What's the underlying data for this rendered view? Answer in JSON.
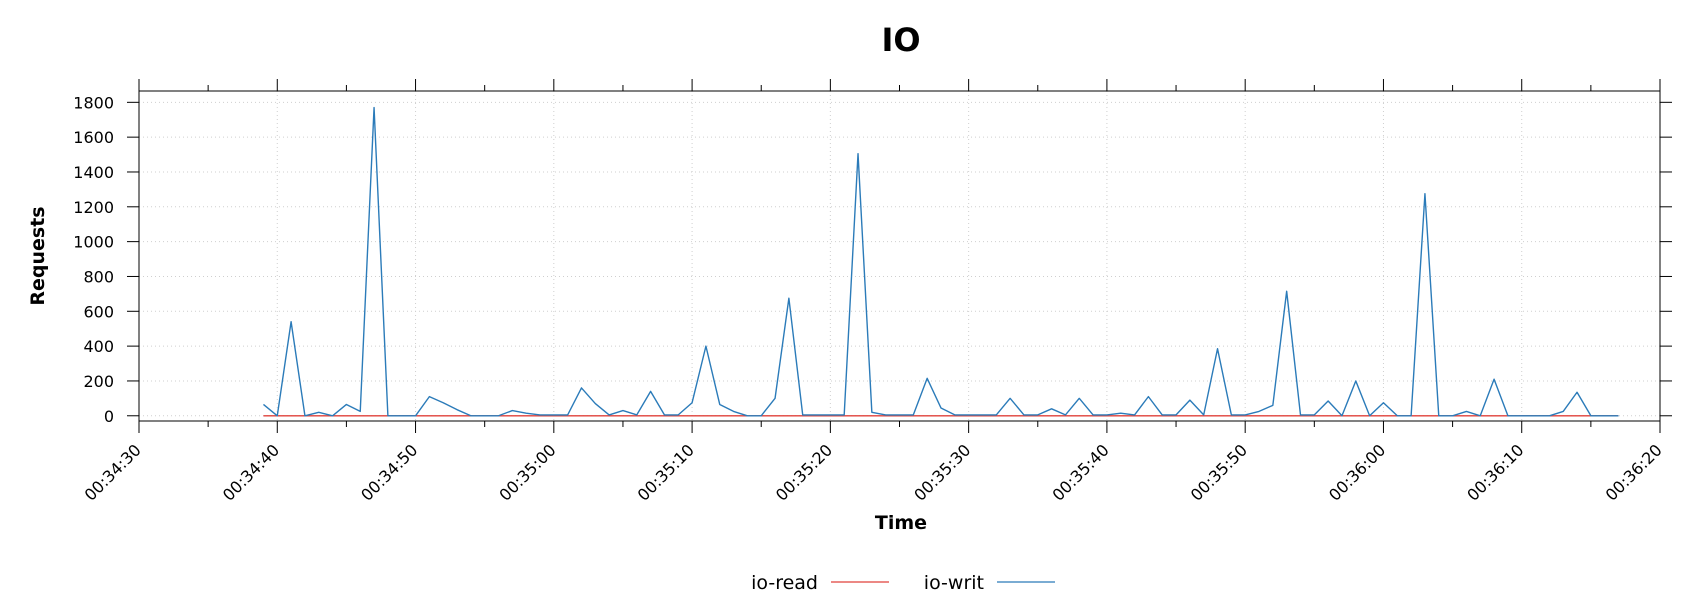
{
  "chart_data": {
    "type": "line",
    "title": "IO",
    "xlabel": "Time",
    "ylabel": "Requests",
    "x_tick_labels": [
      "00:34:30",
      "00:34:40",
      "00:34:50",
      "00:35:00",
      "00:35:10",
      "00:35:20",
      "00:35:30",
      "00:35:40",
      "00:35:50",
      "00:36:00",
      "00:36:10",
      "00:36:20"
    ],
    "x_tick_values": [
      "00:34:30",
      "00:34:40",
      "00:34:50",
      "00:35:00",
      "00:35:10",
      "00:35:20",
      "00:35:30",
      "00:35:40",
      "00:35:50",
      "00:36:00",
      "00:36:10",
      "00:36:20"
    ],
    "x_range": [
      "00:34:30",
      "00:36:20"
    ],
    "x_minor_tick_interval": "5s",
    "y_ticks": [
      0,
      200,
      400,
      600,
      800,
      1000,
      1200,
      1400,
      1600,
      1800
    ],
    "ylim": [
      -30,
      1865
    ],
    "grid": true,
    "legend_position": "bottom-center",
    "series": [
      {
        "name": "io-read",
        "color": "#e0403a",
        "points": [
          [
            "00:34:39",
            0
          ],
          [
            "00:36:17",
            0
          ]
        ]
      },
      {
        "name": "io-writ",
        "color": "#2b7bb9",
        "points": [
          [
            "00:34:39",
            65
          ],
          [
            "00:34:40",
            0
          ],
          [
            "00:34:41",
            540
          ],
          [
            "00:34:42",
            0
          ],
          [
            "00:34:43",
            20
          ],
          [
            "00:34:44",
            0
          ],
          [
            "00:34:45",
            65
          ],
          [
            "00:34:46",
            25
          ],
          [
            "00:34:47",
            1770
          ],
          [
            "00:34:48",
            0
          ],
          [
            "00:34:49",
            0
          ],
          [
            "00:34:50",
            0
          ],
          [
            "00:34:51",
            110
          ],
          [
            "00:34:52",
            75
          ],
          [
            "00:34:53",
            35
          ],
          [
            "00:34:54",
            0
          ],
          [
            "00:34:55",
            0
          ],
          [
            "00:34:56",
            0
          ],
          [
            "00:34:57",
            30
          ],
          [
            "00:34:58",
            15
          ],
          [
            "00:34:59",
            5
          ],
          [
            "00:35:00",
            5
          ],
          [
            "00:35:01",
            5
          ],
          [
            "00:35:02",
            160
          ],
          [
            "00:35:03",
            70
          ],
          [
            "00:35:04",
            5
          ],
          [
            "00:35:05",
            30
          ],
          [
            "00:35:06",
            5
          ],
          [
            "00:35:07",
            140
          ],
          [
            "00:35:08",
            5
          ],
          [
            "00:35:09",
            5
          ],
          [
            "00:35:10",
            75
          ],
          [
            "00:35:11",
            400
          ],
          [
            "00:35:12",
            65
          ],
          [
            "00:35:13",
            25
          ],
          [
            "00:35:14",
            0
          ],
          [
            "00:35:15",
            0
          ],
          [
            "00:35:16",
            100
          ],
          [
            "00:35:17",
            675
          ],
          [
            "00:35:18",
            5
          ],
          [
            "00:35:19",
            5
          ],
          [
            "00:35:20",
            5
          ],
          [
            "00:35:21",
            5
          ],
          [
            "00:35:22",
            1505
          ],
          [
            "00:35:23",
            20
          ],
          [
            "00:35:24",
            5
          ],
          [
            "00:35:25",
            5
          ],
          [
            "00:35:26",
            5
          ],
          [
            "00:35:27",
            215
          ],
          [
            "00:35:28",
            45
          ],
          [
            "00:35:29",
            5
          ],
          [
            "00:35:30",
            5
          ],
          [
            "00:35:31",
            5
          ],
          [
            "00:35:32",
            5
          ],
          [
            "00:35:33",
            100
          ],
          [
            "00:35:34",
            5
          ],
          [
            "00:35:35",
            5
          ],
          [
            "00:35:36",
            40
          ],
          [
            "00:35:37",
            5
          ],
          [
            "00:35:38",
            100
          ],
          [
            "00:35:39",
            5
          ],
          [
            "00:35:40",
            5
          ],
          [
            "00:35:41",
            15
          ],
          [
            "00:35:42",
            5
          ],
          [
            "00:35:43",
            110
          ],
          [
            "00:35:44",
            5
          ],
          [
            "00:35:45",
            5
          ],
          [
            "00:35:46",
            90
          ],
          [
            "00:35:47",
            5
          ],
          [
            "00:35:48",
            385
          ],
          [
            "00:35:49",
            5
          ],
          [
            "00:35:50",
            5
          ],
          [
            "00:35:51",
            25
          ],
          [
            "00:35:52",
            60
          ],
          [
            "00:35:53",
            715
          ],
          [
            "00:35:54",
            5
          ],
          [
            "00:35:55",
            5
          ],
          [
            "00:35:56",
            85
          ],
          [
            "00:35:57",
            0
          ],
          [
            "00:35:58",
            200
          ],
          [
            "00:35:59",
            0
          ],
          [
            "00:36:00",
            75
          ],
          [
            "00:36:01",
            0
          ],
          [
            "00:36:02",
            0
          ],
          [
            "00:36:03",
            1275
          ],
          [
            "00:36:04",
            0
          ],
          [
            "00:36:05",
            0
          ],
          [
            "00:36:06",
            25
          ],
          [
            "00:36:07",
            0
          ],
          [
            "00:36:08",
            210
          ],
          [
            "00:36:09",
            0
          ],
          [
            "00:36:10",
            0
          ],
          [
            "00:36:11",
            0
          ],
          [
            "00:36:12",
            0
          ],
          [
            "00:36:13",
            25
          ],
          [
            "00:36:14",
            135
          ],
          [
            "00:36:15",
            0
          ],
          [
            "00:36:16",
            0
          ],
          [
            "00:36:17",
            0
          ]
        ]
      }
    ]
  }
}
